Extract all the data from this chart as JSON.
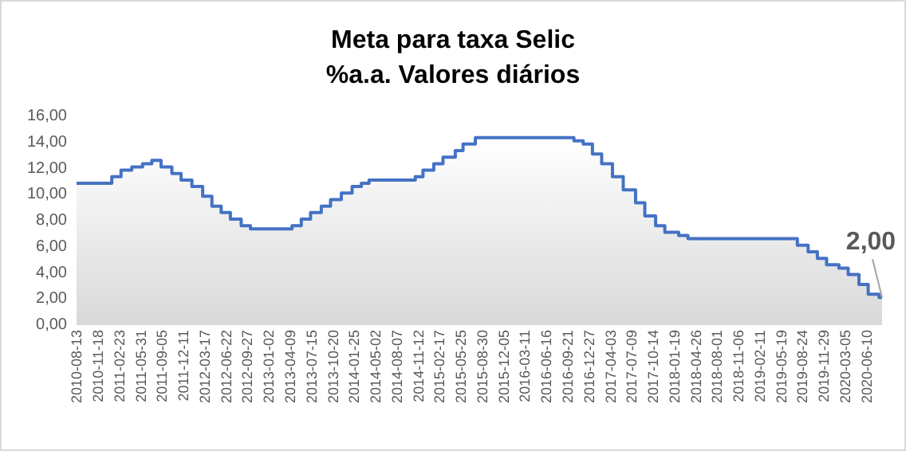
{
  "chart_data": {
    "type": "area",
    "title": "Meta para taxa Selic",
    "subtitle": "%a.a. Valores diários",
    "x": [
      "2010-08-13",
      "2011-01-20",
      "2011-01-20",
      "2011-03-03",
      "2011-03-03",
      "2011-04-21",
      "2011-04-21",
      "2011-06-09",
      "2011-06-09",
      "2011-07-21",
      "2011-07-21",
      "2011-09-01",
      "2011-09-01",
      "2011-10-20",
      "2011-10-20",
      "2011-12-01",
      "2011-12-01",
      "2012-01-19",
      "2012-01-19",
      "2012-03-08",
      "2012-03-08",
      "2012-04-19",
      "2012-04-19",
      "2012-05-31",
      "2012-05-31",
      "2012-07-12",
      "2012-07-12",
      "2012-08-30",
      "2012-08-30",
      "2012-10-11",
      "2012-10-11",
      "2013-04-18",
      "2013-04-18",
      "2013-05-30",
      "2013-05-30",
      "2013-07-11",
      "2013-07-11",
      "2013-08-29",
      "2013-08-29",
      "2013-10-10",
      "2013-10-10",
      "2013-11-28",
      "2013-11-28",
      "2014-01-16",
      "2014-01-16",
      "2014-02-27",
      "2014-02-27",
      "2014-04-03",
      "2014-04-03",
      "2014-10-30",
      "2014-10-30",
      "2014-12-04",
      "2014-12-04",
      "2015-01-22",
      "2015-01-22",
      "2015-03-05",
      "2015-03-05",
      "2015-04-30",
      "2015-04-30",
      "2015-06-04",
      "2015-06-04",
      "2015-07-30",
      "2015-07-30",
      "2016-10-20",
      "2016-10-20",
      "2016-12-01",
      "2016-12-01",
      "2017-01-12",
      "2017-01-12",
      "2017-02-23",
      "2017-02-23",
      "2017-04-13",
      "2017-04-13",
      "2017-06-01",
      "2017-06-01",
      "2017-07-27",
      "2017-07-27",
      "2017-09-07",
      "2017-09-07",
      "2017-10-26",
      "2017-10-26",
      "2017-12-07",
      "2017-12-07",
      "2018-02-08",
      "2018-02-08",
      "2018-03-22",
      "2018-03-22",
      "2019-08-01",
      "2019-08-01",
      "2019-09-19",
      "2019-09-19",
      "2019-10-31",
      "2019-10-31",
      "2019-12-12",
      "2019-12-12",
      "2020-02-06",
      "2020-02-06",
      "2020-03-19",
      "2020-03-19",
      "2020-05-07",
      "2020-05-07",
      "2020-06-18",
      "2020-06-18",
      "2020-08-06",
      "2020-08-06",
      "2020-08-20"
    ],
    "series": [
      {
        "color": "#4472c4",
        "values": [
          10.75,
          10.75,
          11.25,
          11.25,
          11.75,
          11.75,
          12.0,
          12.0,
          12.25,
          12.25,
          12.5,
          12.5,
          12.0,
          12.0,
          11.5,
          11.5,
          11.0,
          11.0,
          10.5,
          10.5,
          9.75,
          9.75,
          9.0,
          9.0,
          8.5,
          8.5,
          8.0,
          8.0,
          7.5,
          7.5,
          7.25,
          7.25,
          7.5,
          7.5,
          8.0,
          8.0,
          8.5,
          8.5,
          9.0,
          9.0,
          9.5,
          9.5,
          10.0,
          10.0,
          10.5,
          10.5,
          10.75,
          10.75,
          11.0,
          11.0,
          11.25,
          11.25,
          11.75,
          11.75,
          12.25,
          12.25,
          12.75,
          12.75,
          13.25,
          13.25,
          13.75,
          13.75,
          14.25,
          14.25,
          14.0,
          14.0,
          13.75,
          13.75,
          13.0,
          13.0,
          12.25,
          12.25,
          11.25,
          11.25,
          10.25,
          10.25,
          9.25,
          9.25,
          8.25,
          8.25,
          7.5,
          7.5,
          7.0,
          7.0,
          6.75,
          6.75,
          6.5,
          6.5,
          6.0,
          6.0,
          5.5,
          5.5,
          5.0,
          5.0,
          4.5,
          4.5,
          4.25,
          4.25,
          3.75,
          3.75,
          3.0,
          3.0,
          2.25,
          2.25,
          2.0,
          2.0
        ]
      }
    ],
    "xlim": [
      "2010-08-13",
      "2020-08-20"
    ],
    "xticks": [
      "2010-08-13",
      "2010-11-18",
      "2011-02-23",
      "2011-05-31",
      "2011-09-05",
      "2011-12-11",
      "2012-03-17",
      "2012-06-22",
      "2012-09-27",
      "2013-01-02",
      "2013-04-09",
      "2013-07-15",
      "2013-10-20",
      "2014-01-25",
      "2014-05-02",
      "2014-08-07",
      "2014-11-12",
      "2015-02-17",
      "2015-05-25",
      "2015-08-30",
      "2015-12-05",
      "2016-03-11",
      "2016-06-16",
      "2016-09-21",
      "2016-12-27",
      "2017-04-03",
      "2017-07-09",
      "2017-10-14",
      "2018-01-19",
      "2018-04-26",
      "2018-08-01",
      "2018-11-06",
      "2019-02-11",
      "2019-05-19",
      "2019-08-24",
      "2019-11-29",
      "2020-03-05",
      "2020-06-10"
    ],
    "ylim": [
      0,
      16
    ],
    "yticks": [
      {
        "value": 0,
        "label": "0,00"
      },
      {
        "value": 2,
        "label": "2,00"
      },
      {
        "value": 4,
        "label": "4,00"
      },
      {
        "value": 6,
        "label": "6,00"
      },
      {
        "value": 8,
        "label": "8,00"
      },
      {
        "value": 10,
        "label": "10,00"
      },
      {
        "value": 12,
        "label": "12,00"
      },
      {
        "value": 14,
        "label": "14,00"
      },
      {
        "value": 16,
        "label": "16,00"
      }
    ],
    "grid": false,
    "annotations": [
      {
        "text": "2,00",
        "x": "2020-08-20",
        "y": 2
      }
    ]
  }
}
